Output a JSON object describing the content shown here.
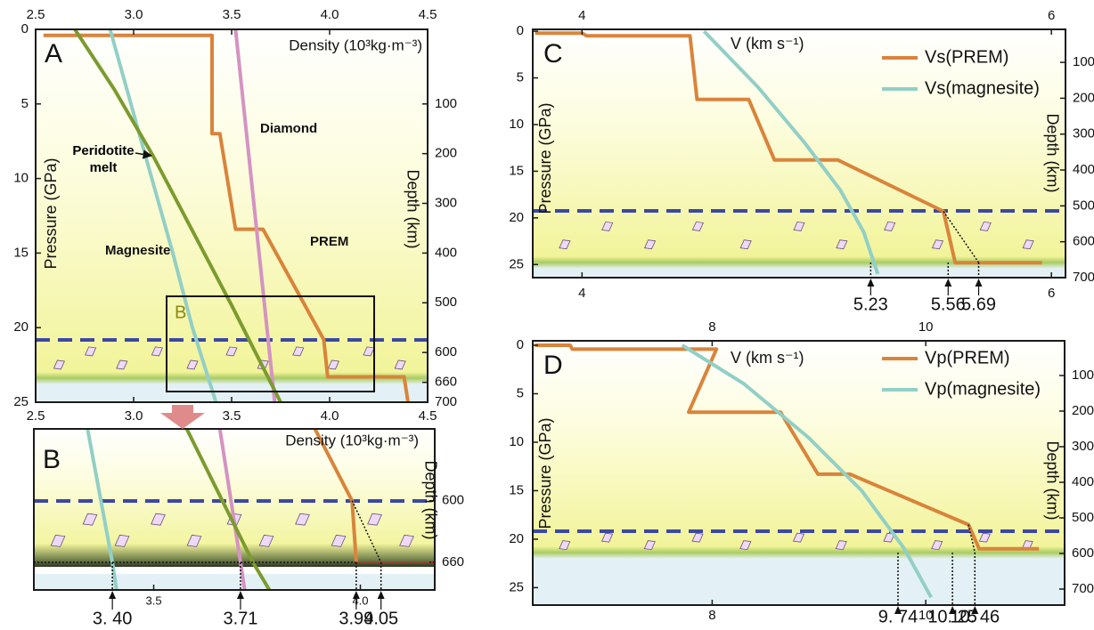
{
  "chart_data": [
    {
      "type": "line",
      "label": "A",
      "xlabel": "Density (10³kg·m⁻³)",
      "ylabel": "Pressure (GPa)",
      "y2label": "Depth (km)",
      "zoom_box": "B",
      "xlim": [
        2.5,
        4.5
      ],
      "xticks": [
        2.5,
        {
          "value": 3,
          "label": "3.0"
        },
        3.5,
        {
          "value": 4,
          "label": "4.0"
        },
        4.5
      ],
      "ylim": [
        0,
        25
      ],
      "yticks": [
        0,
        5,
        10,
        15,
        20,
        25
      ],
      "y2lim": [
        -50,
        700
      ],
      "y2ticks": [
        100,
        200,
        300,
        400,
        500,
        600,
        660,
        700
      ],
      "series": [
        {
          "name": "PREM",
          "color": "#d9843b",
          "x": [
            2.54,
            3.4,
            3.4,
            3.44,
            3.52,
            3.66,
            3.97,
            3.99,
            4.38,
            4.4
          ],
          "values": [
            0.4,
            0.4,
            7,
            7,
            13.4,
            13.4,
            20.8,
            23.3,
            23.3,
            25
          ]
        },
        {
          "name": "Diamond",
          "color": "#d493c2",
          "x": [
            3.52,
            3.72
          ],
          "values": [
            0,
            25
          ]
        },
        {
          "name": "Magnesite",
          "color": "#92cfc6",
          "x": [
            2.88,
            3.05,
            3.2,
            3.3,
            3.42
          ],
          "values": [
            0,
            8,
            15,
            20,
            25
          ]
        },
        {
          "name": "Peridotite melt",
          "color": "#7b9b2e",
          "x": [
            2.7,
            2.9,
            3.1,
            3.3,
            3.5,
            3.75
          ],
          "values": [
            0,
            4,
            8.5,
            13.5,
            18.5,
            25
          ]
        }
      ]
    },
    {
      "type": "line",
      "label": "B",
      "xlabel": "Density (10³kg·m⁻³)",
      "y2label": "Depth (km)",
      "xlim": [
        3.21,
        4.18
      ],
      "xticks": [
        3.5,
        {
          "value": 4,
          "label": "4.0"
        }
      ],
      "y2lim": [
        530,
        687
      ],
      "y2ticks": [
        600,
        660
      ],
      "series": [
        {
          "color": "#92cfc6",
          "axis": "y2",
          "x": [
            3.34,
            3.4,
            3.41
          ],
          "values": [
            530,
            660,
            687
          ]
        },
        {
          "color": "#d493c2",
          "axis": "y2",
          "x": [
            3.66,
            3.71,
            3.72
          ],
          "values": [
            530,
            660,
            687
          ]
        },
        {
          "color": "#7b9b2e",
          "axis": "y2",
          "x": [
            3.58,
            3.74,
            3.78
          ],
          "values": [
            530,
            660,
            687
          ]
        },
        {
          "color": "#d9843b",
          "axis": "y2",
          "x": [
            3.89,
            3.98,
            3.99
          ],
          "values": [
            530,
            600,
            660
          ]
        }
      ],
      "markers": [
        {
          "value": 3.4,
          "label": "3. 40"
        },
        3.71,
        3.99,
        4.05
      ]
    },
    {
      "type": "line",
      "label": "C",
      "xlabel": "V (km s⁻¹)",
      "ylabel": "Pressure (GPa)",
      "y2label": "Depth (km)",
      "legend": "upper right",
      "xlim": [
        3.79,
        6.06
      ],
      "xticks": [
        4,
        6
      ],
      "ylim": [
        -0.2,
        26.4
      ],
      "yticks": [
        0,
        5,
        10,
        15,
        20,
        25
      ],
      "y2lim": [
        8,
        700
      ],
      "y2ticks": [
        100,
        200,
        300,
        400,
        500,
        600,
        700
      ],
      "series": [
        {
          "name": "Vs(PREM)",
          "color": "#d9843b",
          "x": [
            3.8,
            4.0,
            4.02,
            4.46,
            4.49,
            4.71,
            4.82,
            5.09,
            5.54,
            5.59,
            5.96
          ],
          "values": [
            0.2,
            0.2,
            0.5,
            0.5,
            7.3,
            7.3,
            13.8,
            13.8,
            19.3,
            24.8,
            24.8
          ]
        },
        {
          "name": "Vs(magnesite)",
          "color": "#92cfc6",
          "x": [
            4.52,
            4.75,
            4.95,
            5.1,
            5.2,
            5.26
          ],
          "values": [
            0,
            6,
            12,
            17,
            21.5,
            26
          ]
        }
      ],
      "markers": [
        5.23,
        5.56,
        5.69
      ]
    },
    {
      "type": "line",
      "label": "D",
      "xlabel": "V (km s⁻¹)",
      "ylabel": "Pressure (GPa)",
      "y2label": "Depth (km)",
      "legend": "upper right",
      "xlim": [
        6.32,
        11.3
      ],
      "xticks": [
        8,
        10
      ],
      "ylim": [
        -0.46,
        26.8
      ],
      "yticks": [
        0,
        5,
        10,
        15,
        20,
        25
      ],
      "y2lim": [
        2.5,
        745
      ],
      "y2ticks": [
        100,
        200,
        300,
        400,
        500,
        600,
        700
      ],
      "series": [
        {
          "name": "Vp(PREM)",
          "color": "#d9843b",
          "x": [
            6.34,
            6.67,
            6.69,
            8.04,
            7.78,
            8.64,
            8.99,
            9.29,
            10.4,
            10.5,
            11.06
          ],
          "values": [
            0,
            0,
            0.4,
            0.4,
            6.9,
            6.9,
            13.3,
            13.3,
            18.5,
            21,
            21
          ]
        },
        {
          "name": "Vp(magnesite)",
          "color": "#92cfc6",
          "x": [
            7.72,
            8.3,
            8.9,
            9.4,
            9.8,
            10.05
          ],
          "values": [
            0,
            4,
            9.5,
            15,
            21,
            26
          ]
        }
      ],
      "markers": [
        {
          "value": 9.74,
          "label": "9. 74"
        },
        {
          "value": 10.25,
          "label": "10. 25"
        },
        {
          "value": 10.46,
          "label": "10. 46"
        }
      ]
    }
  ]
}
